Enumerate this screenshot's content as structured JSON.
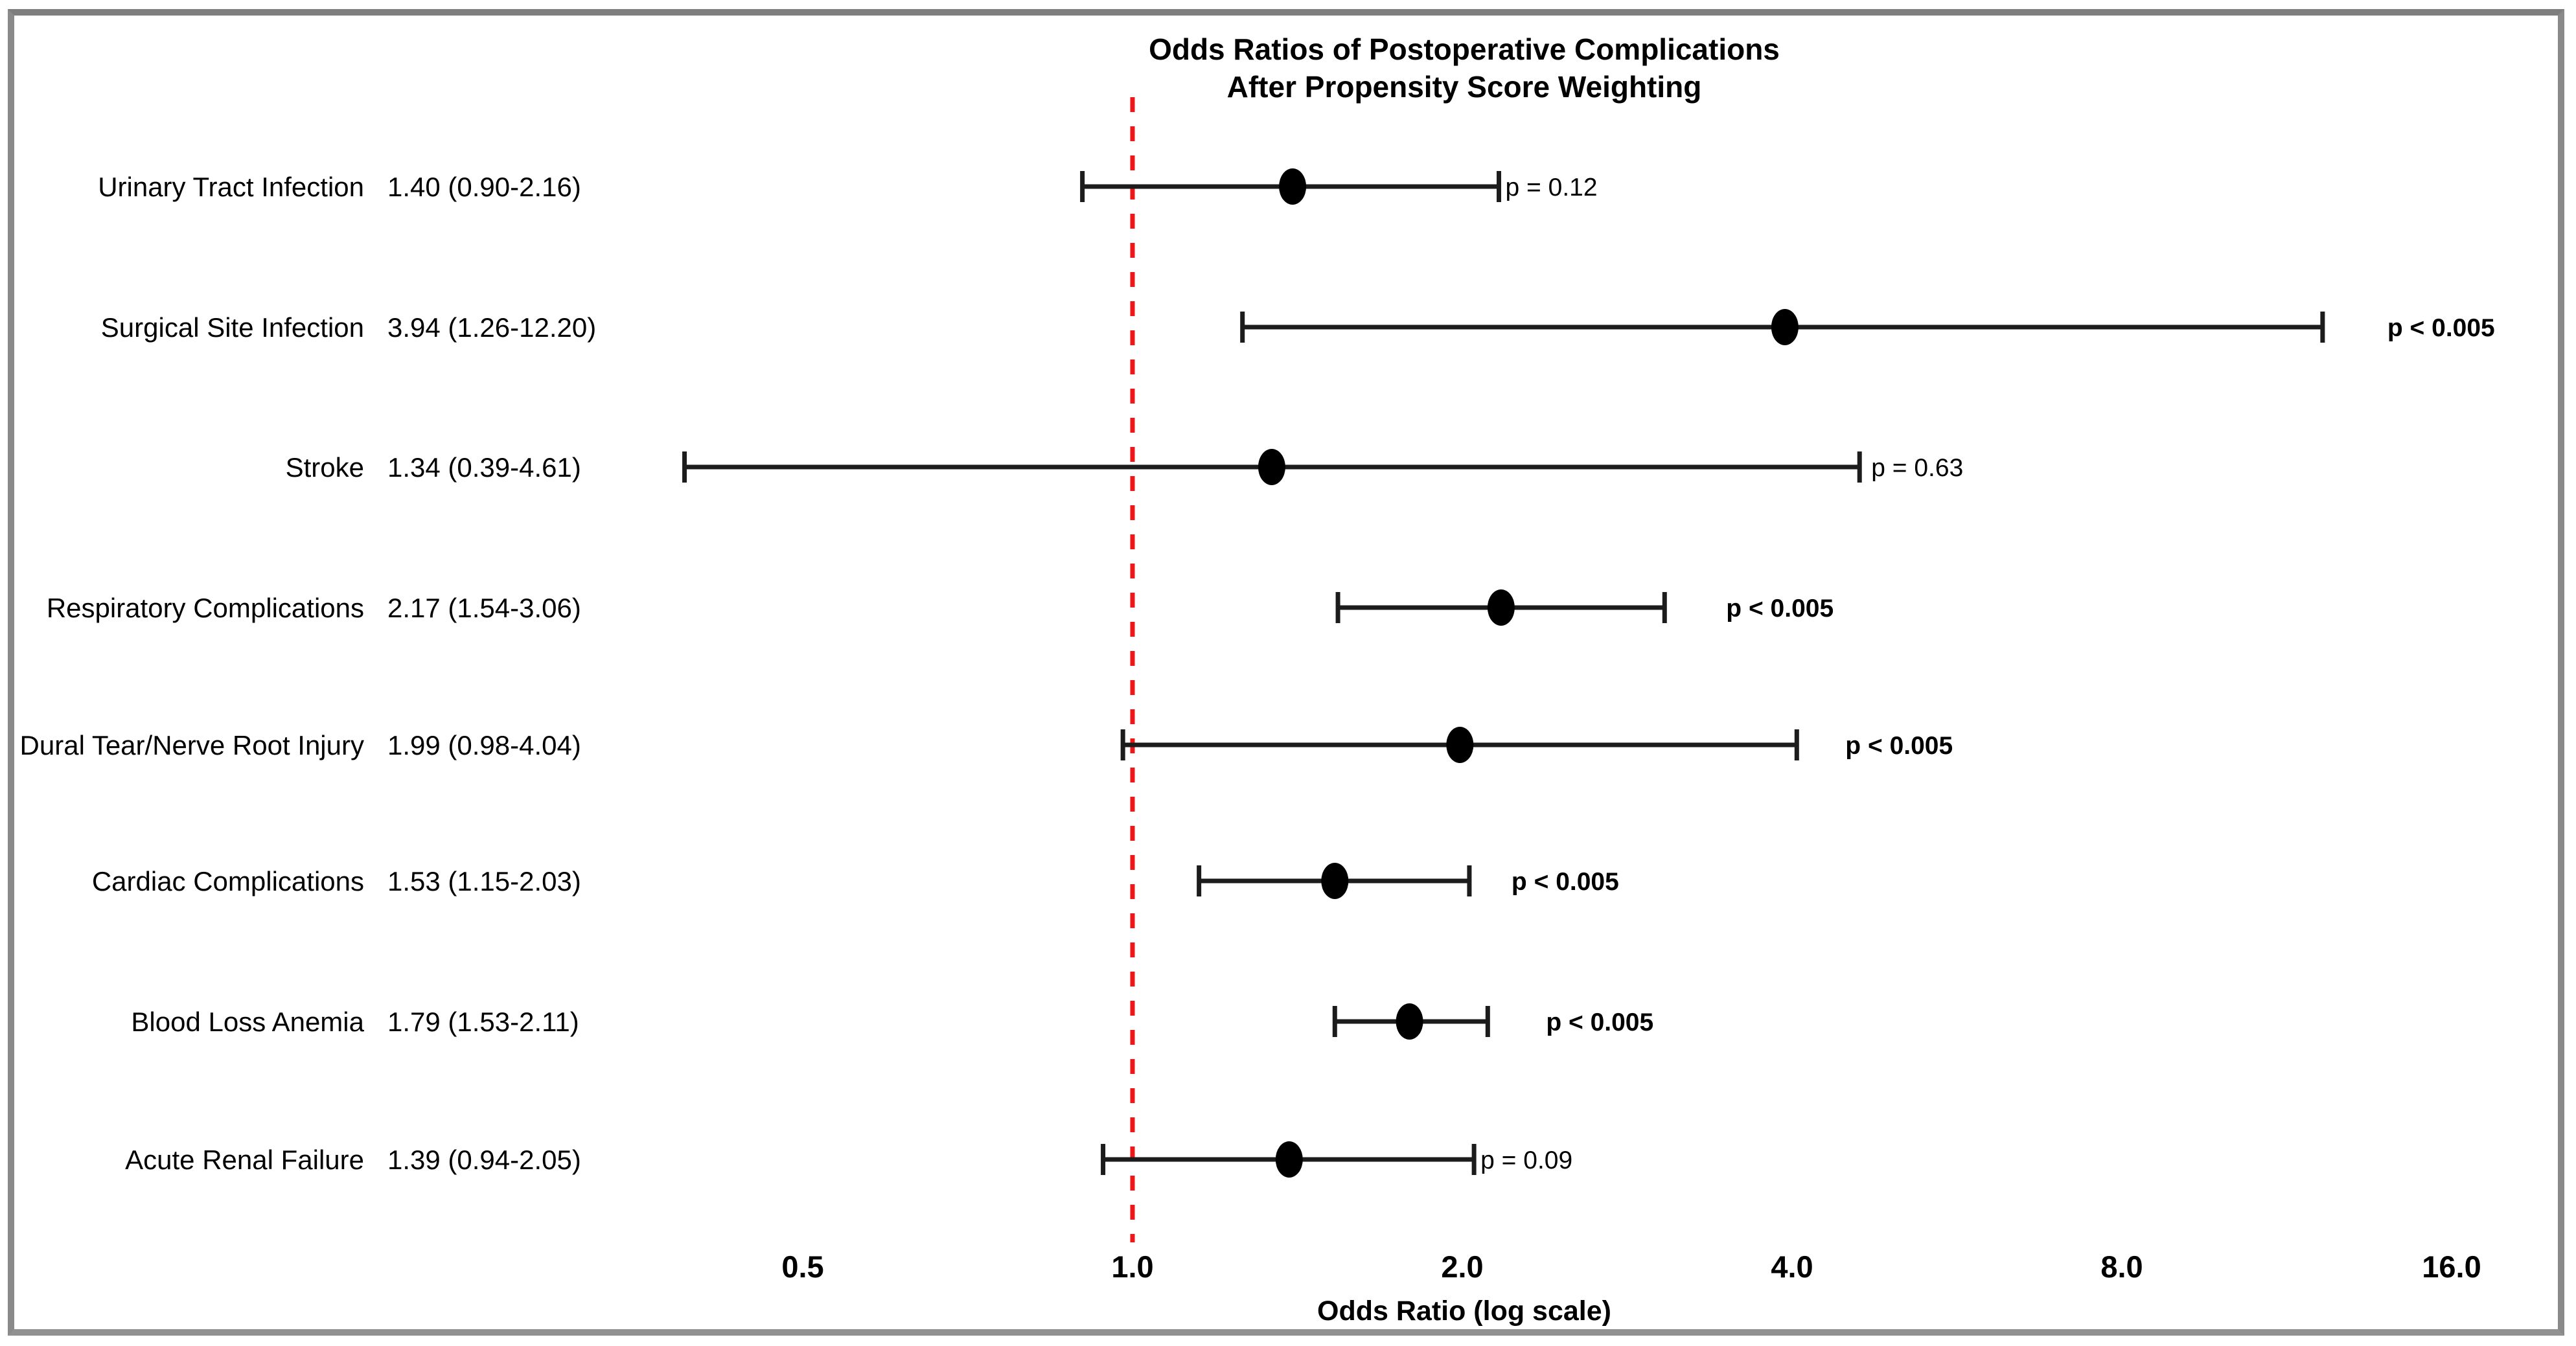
{
  "figure": {
    "title_line1": "Odds Ratios of Postoperative Complications",
    "title_line2": "After Propensity Score Weighting"
  },
  "chart_data": {
    "type": "scatter",
    "subtype": "forest-plot",
    "title_lines": [
      "Odds Ratios of Postoperative Complications",
      "After Propensity Score Weighting"
    ],
    "xlabel": "Odds Ratio (log scale)",
    "x_scale": "log2",
    "xlim": [
      0.33,
      18
    ],
    "x_ticks": [
      0.5,
      1.0,
      2.0,
      4.0,
      8.0,
      16.0
    ],
    "x_tick_labels": [
      "0.5",
      "1.0",
      "2.0",
      "4.0",
      "8.0",
      "16.0"
    ],
    "grid": false,
    "legend": "none",
    "reference_line": {
      "value": 1.0,
      "style": "dashed",
      "color": "#ee1616"
    },
    "rows": [
      {
        "label": "Urinary Tract Infection",
        "display": "1.40 (0.90-2.16)",
        "or": 1.4,
        "ci_low": 0.9,
        "ci_high": 2.16,
        "p_label": "p = 0.12",
        "p_bold": false,
        "p_gap": 10
      },
      {
        "label": "Surgical Site Infection",
        "display": "3.94 (1.26-12.20)",
        "or": 3.94,
        "ci_low": 1.26,
        "ci_high": 12.2,
        "p_label": "p < 0.005",
        "p_bold": true,
        "p_gap": 100
      },
      {
        "label": "Stroke",
        "display": "1.34 (0.39-4.61)",
        "or": 1.34,
        "ci_low": 0.39,
        "ci_high": 4.61,
        "p_label": "p = 0.63",
        "p_bold": false,
        "p_gap": 18
      },
      {
        "label": "Respiratory Complications",
        "display": "2.17 (1.54-3.06)",
        "or": 2.17,
        "ci_low": 1.54,
        "ci_high": 3.06,
        "p_label": "p < 0.005",
        "p_bold": true,
        "p_gap": 95
      },
      {
        "label": "Dural Tear/Nerve Root Injury",
        "display": "1.99 (0.98-4.04)",
        "or": 1.99,
        "ci_low": 0.98,
        "ci_high": 4.04,
        "p_label": "p < 0.005",
        "p_bold": true,
        "p_gap": 75
      },
      {
        "label": "Cardiac Complications",
        "display": "1.53 (1.15-2.03)",
        "or": 1.53,
        "ci_low": 1.15,
        "ci_high": 2.03,
        "p_label": "p < 0.005",
        "p_bold": true,
        "p_gap": 65
      },
      {
        "label": "Blood Loss Anemia",
        "display": "1.79 (1.53-2.11)",
        "or": 1.79,
        "ci_low": 1.53,
        "ci_high": 2.11,
        "p_label": "p < 0.005",
        "p_bold": true,
        "p_gap": 90
      },
      {
        "label": "Acute Renal Failure",
        "display": "1.39 (0.94-2.05)",
        "or": 1.39,
        "ci_low": 0.94,
        "ci_high": 2.05,
        "p_label": "p = 0.09",
        "p_bold": false,
        "p_gap": 10
      }
    ],
    "colors": {
      "marker": "#000000",
      "ci_line": "#1c1c1c",
      "reference": "#ee1616",
      "text": "#000000",
      "border": "#8a8a8a"
    }
  }
}
